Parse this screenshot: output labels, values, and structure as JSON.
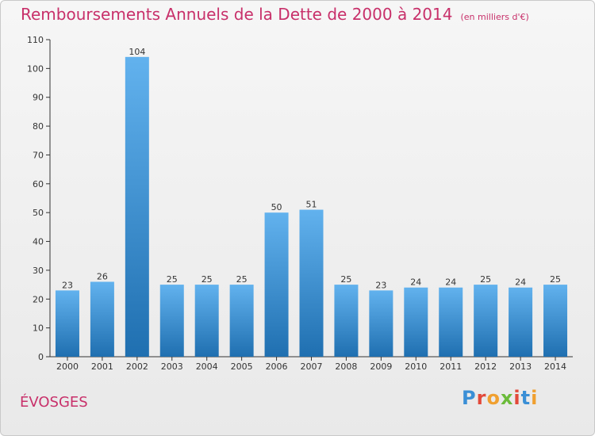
{
  "header": {
    "title": "Remboursements Annuels de la Dette de 2000 à 2014",
    "subtitle": "(en milliers d'€)"
  },
  "footer": {
    "place": "ÉVOSGES",
    "logo": "Proxiti"
  },
  "colors": {
    "title": "#c8306a",
    "bar_top": "#62b2ee",
    "bar_bottom": "#1f6fb0",
    "axis": "#333333",
    "grid": "#cfcfcf",
    "logo": [
      "#3a8fd6",
      "#e2493a",
      "#f0a030",
      "#6bbb3a",
      "#e2493a",
      "#3a8fd6",
      "#f0a030"
    ]
  },
  "chart_data": {
    "type": "bar",
    "title": "Remboursements Annuels de la Dette de 2000 à 2014",
    "subtitle": "(en milliers d'€)",
    "categories": [
      "2000",
      "2001",
      "2002",
      "2003",
      "2004",
      "2005",
      "2006",
      "2007",
      "2008",
      "2009",
      "2010",
      "2011",
      "2012",
      "2013",
      "2014"
    ],
    "values": [
      23,
      26,
      104,
      25,
      25,
      25,
      50,
      51,
      25,
      23,
      24,
      24,
      25,
      24,
      25
    ],
    "yticks": [
      0,
      10,
      20,
      30,
      40,
      50,
      60,
      70,
      80,
      90,
      100,
      110
    ],
    "ylim": [
      0,
      110
    ],
    "xlabel": "",
    "ylabel": "",
    "grid": false
  }
}
